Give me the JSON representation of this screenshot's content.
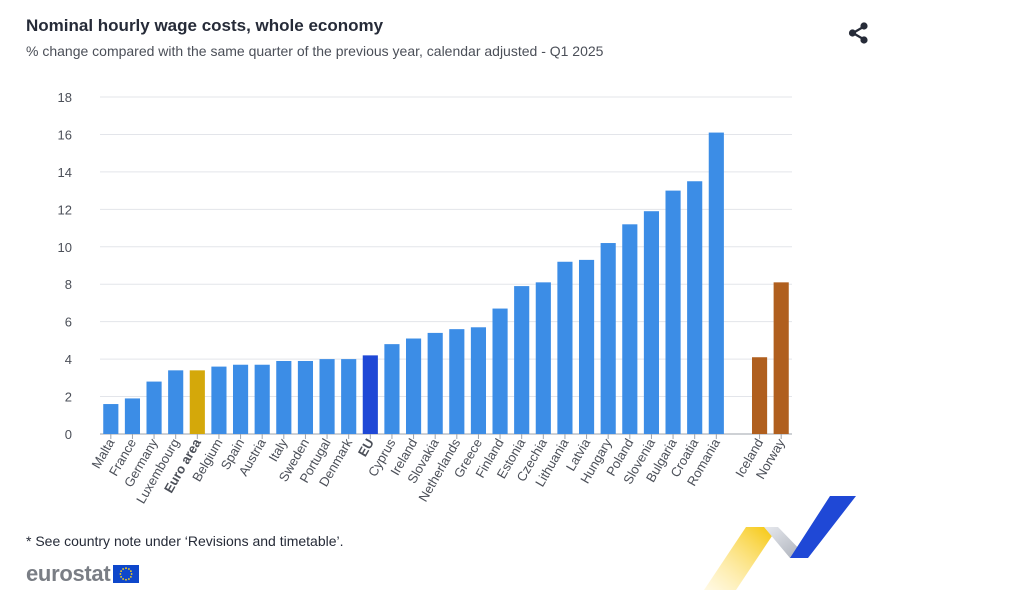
{
  "header": {
    "title": "Nominal hourly wage costs, whole economy",
    "subtitle": "% change compared with the same quarter of the previous year, calendar adjusted - Q1 2025"
  },
  "toolbar": {
    "share_icon": "share-icon"
  },
  "footer": {
    "note": "* See country note under ‘Revisions and timetable’.",
    "logo_text": "eurostat"
  },
  "chart_data": {
    "type": "bar",
    "title": "Nominal hourly wage costs, whole economy",
    "subtitle": "% change compared with the same quarter of the previous year, calendar adjusted - Q1 2025",
    "xlabel": "",
    "ylabel": "",
    "ylim": [
      0,
      18
    ],
    "yticks": [
      0,
      2,
      4,
      6,
      8,
      10,
      12,
      14,
      16,
      18
    ],
    "grid": true,
    "legend": "none",
    "colors": {
      "country": "#3C8DE6",
      "euro_area": "#D4A80A",
      "eu": "#1F48D6",
      "efta": "#B05F1E"
    },
    "groups": [
      {
        "name": "",
        "categories": [
          "Malta",
          "France",
          "Germany",
          "Luxembourg",
          "Euro area",
          "Belgium",
          "Spain",
          "Austria",
          "Italy",
          "Sweden",
          "Portugal",
          "Denmark",
          "EU",
          "Cyprus",
          "Ireland",
          "Slovakia",
          "Netherlands",
          "Greece",
          "Finland",
          "Estonia",
          "Czechia",
          "Lithuania",
          "Latvia",
          "Hungary",
          "Poland",
          "Slovenia",
          "Bulgaria",
          "Croatia",
          "Romania"
        ],
        "values": [
          1.6,
          1.9,
          2.8,
          3.4,
          3.4,
          3.6,
          3.7,
          3.7,
          3.9,
          3.9,
          4.0,
          4.0,
          4.2,
          4.8,
          5.1,
          5.4,
          5.6,
          5.7,
          6.7,
          7.9,
          8.1,
          9.2,
          9.3,
          10.2,
          11.2,
          11.9,
          13.0,
          13.5,
          16.1
        ],
        "bold": [
          "Euro area",
          "EU"
        ],
        "bar_kinds": [
          "country",
          "country",
          "country",
          "country",
          "euro_area",
          "country",
          "country",
          "country",
          "country",
          "country",
          "country",
          "country",
          "eu",
          "country",
          "country",
          "country",
          "country",
          "country",
          "country",
          "country",
          "country",
          "country",
          "country",
          "country",
          "country",
          "country",
          "country",
          "country",
          "country"
        ]
      },
      {
        "name": "",
        "categories": [
          "Iceland",
          "Norway"
        ],
        "values": [
          4.1,
          8.1
        ],
        "bold": [],
        "bar_kinds": [
          "efta",
          "efta"
        ]
      }
    ]
  }
}
